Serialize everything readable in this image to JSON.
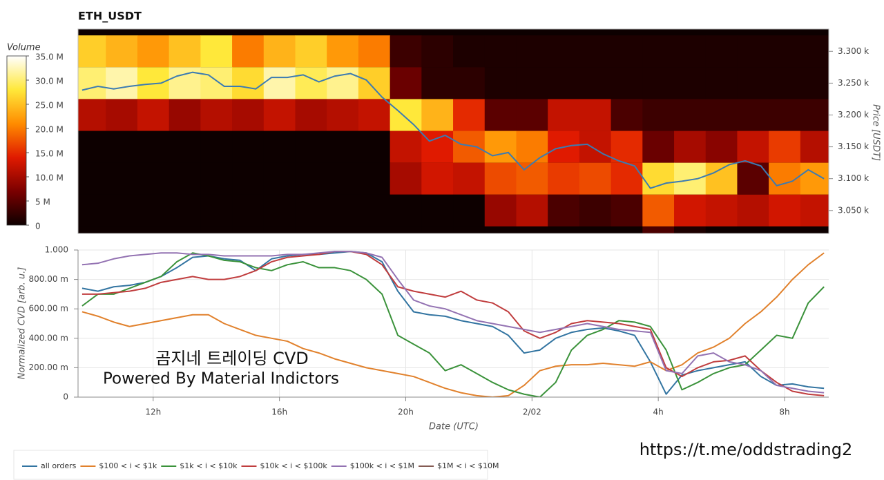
{
  "chart_data": [
    {
      "type": "heatmap",
      "title": "ETH_USDT",
      "columns": [
        10,
        11,
        12,
        13,
        14,
        15,
        16,
        17,
        18,
        19,
        20,
        21,
        22,
        23,
        24,
        25,
        26,
        27,
        28,
        29,
        30,
        31,
        32,
        33
      ],
      "rows": [
        3300,
        3250,
        3200,
        3150,
        3100,
        3050,
        3000
      ],
      "z": [
        [
          26,
          24,
          22,
          25,
          28,
          20,
          24,
          26,
          22,
          20,
          3,
          2,
          1,
          1,
          1,
          1,
          1,
          1,
          1,
          1,
          1,
          1,
          1,
          1
        ],
        [
          30,
          32,
          28,
          31,
          30,
          27,
          32,
          29,
          31,
          26,
          6,
          2,
          2,
          1,
          1,
          1,
          1,
          1,
          1,
          1,
          1,
          1,
          1,
          1
        ],
        [
          11,
          10,
          12,
          9,
          11,
          10,
          12,
          10,
          11,
          12,
          28,
          24,
          15,
          5,
          5,
          12,
          12,
          4,
          3,
          3,
          3,
          3,
          3,
          3
        ],
        [
          0,
          0,
          0,
          0,
          0,
          0,
          0,
          0,
          0,
          0,
          12,
          14,
          18,
          22,
          20,
          14,
          12,
          15,
          6,
          10,
          8,
          12,
          16,
          11
        ],
        [
          0,
          0,
          0,
          0,
          0,
          0,
          0,
          0,
          0,
          0,
          10,
          13,
          12,
          17,
          18,
          16,
          17,
          15,
          27,
          30,
          25,
          5,
          20,
          22
        ],
        [
          0,
          0,
          0,
          0,
          0,
          0,
          0,
          0,
          0,
          0,
          0,
          0,
          0,
          9,
          11,
          4,
          3,
          4,
          18,
          13,
          12,
          11,
          13,
          12
        ],
        [
          0,
          0,
          0,
          0,
          0,
          0,
          0,
          0,
          0,
          0,
          0,
          0,
          0,
          0,
          0,
          0,
          0,
          0,
          4,
          1,
          0,
          0,
          0,
          0
        ]
      ],
      "colorbar": {
        "title": "Volume",
        "lim": [
          0,
          35
        ],
        "ticks": [
          {
            "value": 35,
            "label": "35.0 M"
          },
          {
            "value": 30,
            "label": "30.0 M"
          },
          {
            "value": 25,
            "label": "25.0 M"
          },
          {
            "value": 20,
            "label": "20.0 M"
          },
          {
            "value": 15,
            "label": "15.0 M"
          },
          {
            "value": 10,
            "label": "10.0 M"
          },
          {
            "value": 5,
            "label": "5 M"
          },
          0
        ],
        "colors": [
          "#0d0000",
          "#7a0000",
          "#e01a00",
          "#ff8c00",
          "#ffe83a",
          "#ffffff"
        ]
      },
      "xlim": [
        9.62,
        33.4
      ],
      "ylabel": "Price [USDT]",
      "ylim": [
        3014,
        3335
      ],
      "yticks": [
        {
          "value": 3300,
          "label": "3.300 k"
        },
        {
          "value": 3250,
          "label": "3.250 k"
        },
        {
          "value": 3200,
          "label": "3.200 k"
        },
        {
          "value": 3150,
          "label": "3.150 k"
        },
        {
          "value": 3100,
          "label": "3.100 k"
        },
        {
          "value": 3050,
          "label": "3.050 k"
        }
      ],
      "price": {
        "color": "#3b7bb2",
        "x": [
          9.75,
          10.25,
          10.75,
          11.25,
          11.75,
          12.25,
          12.75,
          13.25,
          13.75,
          14.25,
          14.75,
          15.25,
          15.75,
          16.25,
          16.75,
          17.25,
          17.75,
          18.25,
          18.75,
          19.25,
          19.75,
          20.25,
          20.75,
          21.25,
          21.75,
          22.25,
          22.75,
          23.25,
          23.75,
          24.25,
          24.75,
          25.25,
          25.75,
          26.25,
          26.75,
          27.25,
          27.75,
          28.25,
          28.75,
          29.25,
          29.75,
          30.25,
          30.75,
          31.25,
          31.75,
          32.25,
          32.75,
          33.25
        ],
        "values": [
          3239,
          3245,
          3241,
          3245,
          3248,
          3250,
          3261,
          3267,
          3263,
          3245,
          3245,
          3241,
          3259,
          3259,
          3263,
          3252,
          3261,
          3265,
          3255,
          3228,
          3207,
          3185,
          3159,
          3168,
          3154,
          3150,
          3136,
          3141,
          3114,
          3133,
          3147,
          3152,
          3154,
          3139,
          3128,
          3120,
          3085,
          3093,
          3096,
          3100,
          3109,
          3122,
          3128,
          3120,
          3089,
          3096,
          3114,
          3100
        ]
      }
    },
    {
      "type": "line",
      "xlabel": "Date (UTC)",
      "ylabel": "Normalized CVD [arb. u.]",
      "grid": true,
      "x": [
        9.75,
        10.25,
        10.75,
        11.25,
        11.75,
        12.25,
        12.75,
        13.25,
        13.75,
        14.25,
        14.75,
        15.25,
        15.75,
        16.25,
        16.75,
        17.25,
        17.75,
        18.25,
        18.75,
        19.25,
        19.75,
        20.25,
        20.75,
        21.25,
        21.75,
        22.25,
        22.75,
        23.25,
        23.75,
        24.25,
        24.75,
        25.25,
        25.75,
        26.25,
        26.75,
        27.25,
        27.75,
        28.25,
        28.75,
        29.25,
        29.75,
        30.25,
        30.75,
        31.25,
        31.75,
        32.25,
        32.75,
        33.25
      ],
      "xlim": [
        9.62,
        33.4
      ],
      "xticks": [
        {
          "value": 12,
          "label": "12h"
        },
        {
          "value": 16,
          "label": "16h"
        },
        {
          "value": 20,
          "label": "20h"
        },
        {
          "value": 24,
          "label": "2/02"
        },
        {
          "value": 28,
          "label": "4h"
        },
        {
          "value": 32,
          "label": "8h"
        }
      ],
      "ylim": [
        0,
        1
      ],
      "yticks": [
        0,
        {
          "value": 0.2,
          "label": "200.00 m"
        },
        {
          "value": 0.4,
          "label": "400.00 m"
        },
        {
          "value": 0.6,
          "label": "600.00 m"
        },
        {
          "value": 0.8,
          "label": "800.00 m"
        },
        {
          "value": 1,
          "label": "1.000"
        }
      ],
      "series": [
        {
          "name": "all orders",
          "color": "#3274a1",
          "values": [
            0.74,
            0.72,
            0.75,
            0.76,
            0.78,
            0.82,
            0.88,
            0.95,
            0.96,
            0.94,
            0.93,
            0.86,
            0.94,
            0.96,
            0.97,
            0.97,
            0.98,
            0.99,
            0.98,
            0.92,
            0.72,
            0.58,
            0.56,
            0.55,
            0.52,
            0.5,
            0.48,
            0.42,
            0.3,
            0.32,
            0.4,
            0.44,
            0.46,
            0.47,
            0.45,
            0.42,
            0.24,
            0.02,
            0.15,
            0.18,
            0.2,
            0.22,
            0.24,
            0.14,
            0.08,
            0.09,
            0.07,
            0.06
          ]
        },
        {
          "name": "$100 < i < $1k",
          "color": "#e1812c",
          "values": [
            0.58,
            0.55,
            0.51,
            0.48,
            0.5,
            0.52,
            0.54,
            0.56,
            0.56,
            0.5,
            0.46,
            0.42,
            0.4,
            0.38,
            0.33,
            0.3,
            0.26,
            0.23,
            0.2,
            0.18,
            0.16,
            0.14,
            0.1,
            0.06,
            0.03,
            0.01,
            0.0,
            0.01,
            0.08,
            0.18,
            0.21,
            0.22,
            0.22,
            0.23,
            0.22,
            0.21,
            0.24,
            0.18,
            0.22,
            0.3,
            0.34,
            0.4,
            0.5,
            0.58,
            0.68,
            0.8,
            0.9,
            0.98
          ]
        },
        {
          "name": "$1k < i < $10k",
          "color": "#3a923a",
          "values": [
            0.62,
            0.7,
            0.7,
            0.74,
            0.78,
            0.82,
            0.92,
            0.98,
            0.96,
            0.93,
            0.92,
            0.88,
            0.86,
            0.9,
            0.92,
            0.88,
            0.88,
            0.86,
            0.8,
            0.7,
            0.42,
            0.36,
            0.3,
            0.18,
            0.22,
            0.16,
            0.1,
            0.05,
            0.02,
            0.0,
            0.1,
            0.32,
            0.42,
            0.46,
            0.52,
            0.51,
            0.48,
            0.32,
            0.05,
            0.1,
            0.16,
            0.2,
            0.22,
            0.32,
            0.42,
            0.4,
            0.64,
            0.75
          ]
        },
        {
          "name": "$10k < i < $100k",
          "color": "#c03d3e",
          "values": [
            0.7,
            0.7,
            0.71,
            0.72,
            0.74,
            0.78,
            0.8,
            0.82,
            0.8,
            0.8,
            0.82,
            0.86,
            0.92,
            0.95,
            0.96,
            0.97,
            0.99,
            0.99,
            0.97,
            0.9,
            0.75,
            0.72,
            0.7,
            0.68,
            0.72,
            0.66,
            0.64,
            0.58,
            0.45,
            0.4,
            0.44,
            0.5,
            0.52,
            0.51,
            0.5,
            0.48,
            0.46,
            0.2,
            0.14,
            0.2,
            0.24,
            0.25,
            0.28,
            0.18,
            0.1,
            0.04,
            0.02,
            0.01
          ]
        },
        {
          "name": "$100k < i < $1M",
          "color": "#9372b2",
          "values": [
            0.9,
            0.91,
            0.94,
            0.96,
            0.97,
            0.98,
            0.98,
            0.97,
            0.97,
            0.96,
            0.96,
            0.96,
            0.96,
            0.97,
            0.97,
            0.98,
            0.99,
            0.99,
            0.98,
            0.95,
            0.8,
            0.66,
            0.62,
            0.6,
            0.56,
            0.52,
            0.5,
            0.48,
            0.46,
            0.44,
            0.46,
            0.48,
            0.5,
            0.48,
            0.46,
            0.45,
            0.44,
            0.18,
            0.16,
            0.28,
            0.3,
            0.24,
            0.22,
            0.18,
            0.08,
            0.06,
            0.04,
            0.03
          ]
        },
        {
          "name": "$1M < i < $10M",
          "color": "#845b53",
          "values": [
            null,
            null,
            null,
            null,
            null,
            null,
            null,
            null,
            null,
            null,
            null,
            null,
            null,
            null,
            null,
            null,
            null,
            null,
            null,
            null,
            null,
            null,
            null,
            null,
            null,
            null,
            null,
            null,
            null,
            null,
            null,
            null,
            null,
            null,
            null,
            null,
            null,
            null,
            null,
            null,
            null,
            null,
            null,
            null,
            null,
            null,
            null,
            null
          ]
        }
      ]
    }
  ],
  "watermark": {
    "title": "곰지네 트레이딩 CVD",
    "subtitle": "Powered By Material Indictors"
  },
  "link": "https://t.me/oddstrading2"
}
